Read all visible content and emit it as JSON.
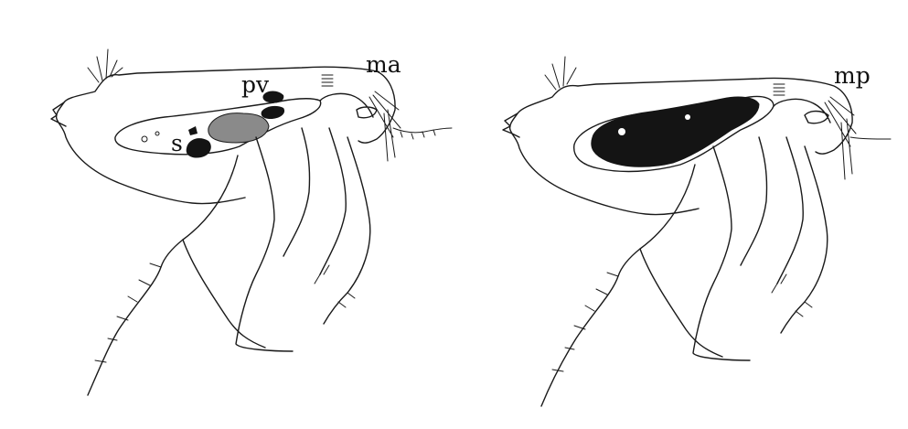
{
  "labels": {
    "pv": "pv",
    "s": "s",
    "ma": "ma",
    "mp": "mp"
  },
  "colors": {
    "ink": "#1a1a1a",
    "gray_fill": "#8a8a8a",
    "dark_fill": "#141414",
    "background": "#ffffff"
  }
}
